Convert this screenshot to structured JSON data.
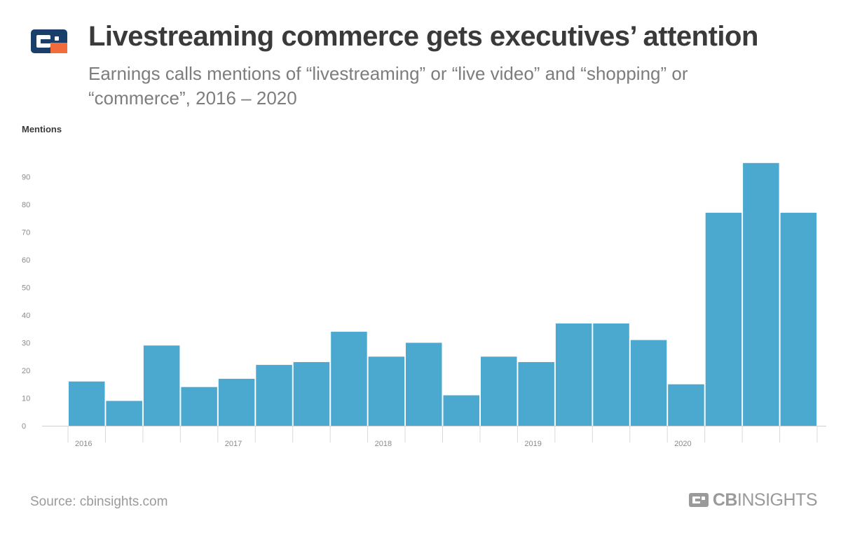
{
  "header": {
    "title": "Livestreaming commerce gets executives’ attention",
    "subtitle": "Earnings calls mentions of “livestreaming” or “live video” and “shopping” or “commerce”, 2016 – 2020",
    "logo_icon": "cb-insights-logo-icon",
    "logo_colors": {
      "navy": "#1b3f6b",
      "orange": "#f26b3a"
    }
  },
  "footer": {
    "source": "Source: cbinsights.com",
    "brand_bold": "CB",
    "brand_light": "INSIGHTS"
  },
  "chart_data": {
    "type": "bar",
    "ylabel": "Mentions",
    "xlabel": "",
    "ylim": [
      0,
      95
    ],
    "yticks": [
      0,
      10,
      20,
      30,
      40,
      50,
      60,
      70,
      80,
      90
    ],
    "grid": false,
    "legend": "none",
    "bar_color": "#4ba8cf",
    "categories": [
      "2016 Q1",
      "2016 Q2",
      "2016 Q3",
      "2016 Q4",
      "2017 Q1",
      "2017 Q2",
      "2017 Q3",
      "2017 Q4",
      "2018 Q1",
      "2018 Q2",
      "2018 Q3",
      "2018 Q4",
      "2019 Q1",
      "2019 Q2",
      "2019 Q3",
      "2019 Q4",
      "2020 Q1",
      "2020 Q2",
      "2020 Q3",
      "2020 Q4"
    ],
    "values": [
      16,
      9,
      29,
      14,
      17,
      22,
      23,
      34,
      25,
      30,
      11,
      25,
      23,
      37,
      37,
      31,
      15,
      77,
      95,
      77
    ],
    "xtick_labels": [
      {
        "label": "2016",
        "category_index": 0
      },
      {
        "label": "2017",
        "category_index": 4
      },
      {
        "label": "2018",
        "category_index": 8
      },
      {
        "label": "2019",
        "category_index": 12
      },
      {
        "label": "2020",
        "category_index": 16
      }
    ]
  }
}
